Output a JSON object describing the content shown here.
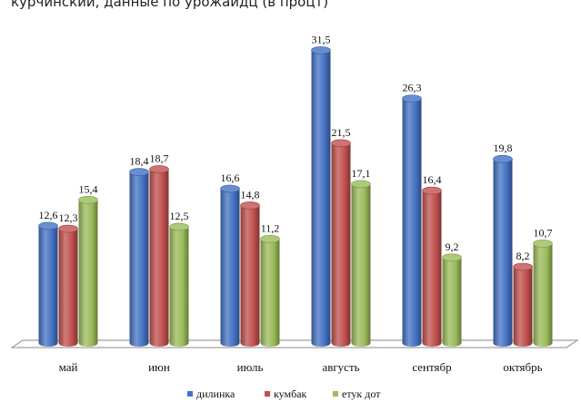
{
  "title": "курчинский, данные по урожайдц (в процт)",
  "chart_data": {
    "type": "bar",
    "categories": [
      "май",
      "июн",
      "июль",
      "августь",
      "сентябр",
      "октябрь"
    ],
    "series": [
      {
        "name": "дилинка",
        "values": [
          12.6,
          18.4,
          16.6,
          31.5,
          26.3,
          19.8
        ],
        "labels": [
          "12,6",
          "18,4",
          "16,6",
          "31,5",
          "26,3",
          "19,8"
        ],
        "color": "#4472c4"
      },
      {
        "name": "кумбак",
        "values": [
          12.3,
          18.7,
          14.8,
          21.5,
          16.4,
          8.2
        ],
        "labels": [
          "12,3",
          "18,7",
          "14,8",
          "21,5",
          "16,4",
          "8,2"
        ],
        "color": "#c0504d"
      },
      {
        "name": "етук дот",
        "values": [
          15.4,
          12.5,
          11.2,
          17.1,
          9.2,
          10.7
        ],
        "labels": [
          "15,4",
          "12,5",
          "11,2",
          "17,1",
          "9,2",
          "10,7"
        ],
        "color": "#9bbb59"
      }
    ],
    "ylim": [
      0,
      33
    ],
    "grid": false,
    "legend_position": "bottom"
  }
}
